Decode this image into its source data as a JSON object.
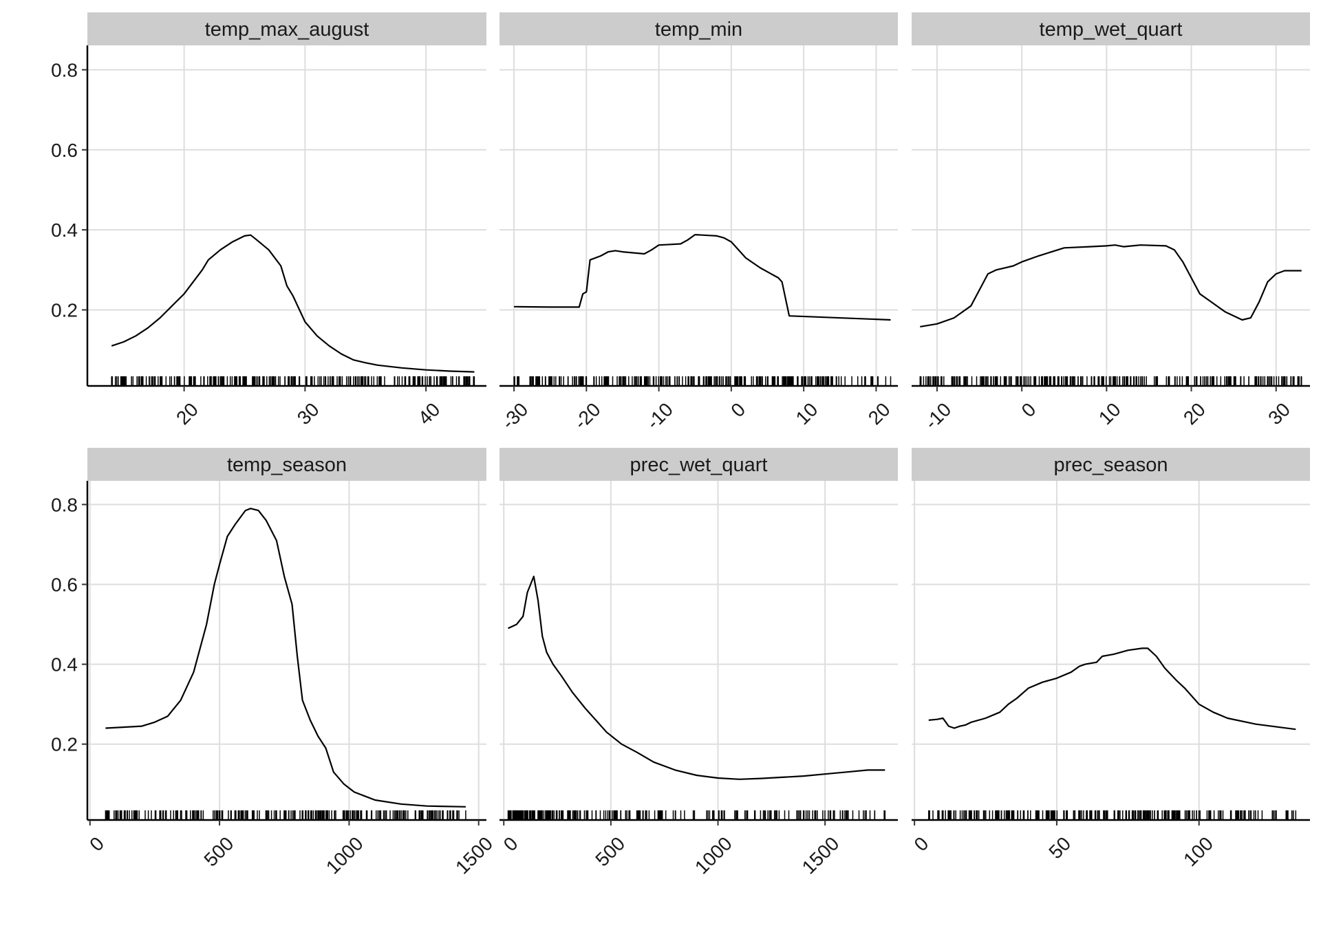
{
  "chart_data": {
    "type": "line",
    "layout": "facet-grid-2x3",
    "y_ticks": [
      0.2,
      0.4,
      0.6,
      0.8
    ],
    "ylim": [
      0.01,
      0.83
    ],
    "colors": {
      "line": "#000000",
      "strip": "#cccccc",
      "grid": "#dddddd"
    },
    "panels": [
      {
        "title": "temp_max_august",
        "xlim": [
          12,
          45
        ],
        "x_ticks": [
          20,
          30,
          40
        ],
        "rug_range": [
          14,
          44
        ],
        "series": [
          {
            "x": [
              14,
              15,
              16,
              17,
              18,
              19,
              20,
              21,
              21.5,
              22,
              23,
              24,
              25,
              25.5,
              26,
              27,
              28,
              28.5,
              29,
              30,
              31,
              32,
              33,
              34,
              35,
              36,
              38,
              40,
              42,
              44
            ],
            "y": [
              0.11,
              0.12,
              0.135,
              0.155,
              0.18,
              0.21,
              0.24,
              0.28,
              0.3,
              0.325,
              0.35,
              0.37,
              0.385,
              0.387,
              0.375,
              0.35,
              0.31,
              0.26,
              0.235,
              0.17,
              0.135,
              0.11,
              0.09,
              0.075,
              0.068,
              0.062,
              0.055,
              0.05,
              0.047,
              0.045
            ]
          }
        ]
      },
      {
        "title": "temp_min",
        "xlim": [
          -32,
          23
        ],
        "x_ticks": [
          -30,
          -20,
          -10,
          0,
          10,
          20
        ],
        "rug_range": [
          -30,
          22
        ],
        "series": [
          {
            "x": [
              -30,
              -25,
              -21,
              -20.5,
              -20,
              -19.5,
              -18,
              -17,
              -16,
              -15,
              -12,
              -11,
              -10,
              -9,
              -7,
              -6,
              -5,
              -3,
              -2,
              -1,
              0,
              1,
              2,
              4,
              5,
              6,
              6.5,
              7,
              8,
              22
            ],
            "y": [
              0.208,
              0.207,
              0.207,
              0.24,
              0.245,
              0.325,
              0.335,
              0.345,
              0.348,
              0.345,
              0.34,
              0.35,
              0.362,
              0.363,
              0.365,
              0.375,
              0.388,
              0.386,
              0.385,
              0.38,
              0.37,
              0.35,
              0.33,
              0.305,
              0.295,
              0.285,
              0.28,
              0.27,
              0.185,
              0.175
            ]
          }
        ]
      },
      {
        "title": "temp_wet_quart",
        "xlim": [
          -13,
          34
        ],
        "x_ticks": [
          -10,
          0,
          10,
          20,
          30
        ],
        "rug_range": [
          -12,
          33
        ],
        "series": [
          {
            "x": [
              -12,
              -10,
              -8,
              -6,
              -5,
              -4,
              -3,
              -2,
              -1,
              0,
              2,
              5,
              8,
              10,
              11,
              12,
              14,
              17,
              18,
              19,
              20,
              21,
              22,
              24,
              26,
              27,
              28,
              29,
              30,
              31,
              33
            ],
            "y": [
              0.158,
              0.165,
              0.18,
              0.21,
              0.25,
              0.29,
              0.3,
              0.305,
              0.31,
              0.32,
              0.335,
              0.355,
              0.358,
              0.36,
              0.362,
              0.358,
              0.362,
              0.36,
              0.35,
              0.32,
              0.28,
              0.24,
              0.225,
              0.195,
              0.175,
              0.18,
              0.22,
              0.27,
              0.29,
              0.298,
              0.298
            ]
          }
        ]
      },
      {
        "title": "temp_season",
        "xlim": [
          -10,
          1530
        ],
        "x_ticks": [
          0,
          500,
          1000,
          1500
        ],
        "rug_range": [
          60,
          1450
        ],
        "series": [
          {
            "x": [
              60,
              200,
              250,
              300,
              350,
              400,
              450,
              480,
              500,
              530,
              560,
              600,
              620,
              650,
              680,
              720,
              750,
              780,
              800,
              820,
              850,
              880,
              910,
              940,
              980,
              1020,
              1060,
              1100,
              1200,
              1300,
              1450
            ],
            "y": [
              0.24,
              0.245,
              0.255,
              0.27,
              0.31,
              0.38,
              0.5,
              0.6,
              0.65,
              0.72,
              0.75,
              0.785,
              0.79,
              0.785,
              0.76,
              0.71,
              0.62,
              0.55,
              0.42,
              0.31,
              0.26,
              0.22,
              0.19,
              0.13,
              0.1,
              0.08,
              0.07,
              0.06,
              0.05,
              0.045,
              0.043
            ]
          }
        ]
      },
      {
        "title": "prec_wet_quart",
        "xlim": [
          -20,
          1840
        ],
        "x_ticks": [
          0,
          500,
          1000,
          1500
        ],
        "rug_range": [
          20,
          1780
        ],
        "series": [
          {
            "x": [
              20,
              60,
              90,
              110,
              140,
              160,
              180,
              200,
              230,
              270,
              320,
              380,
              430,
              480,
              550,
              620,
              700,
              800,
              900,
              1000,
              1100,
              1200,
              1300,
              1400,
              1500,
              1600,
              1700,
              1780
            ],
            "y": [
              0.49,
              0.5,
              0.52,
              0.58,
              0.62,
              0.56,
              0.47,
              0.43,
              0.4,
              0.37,
              0.33,
              0.29,
              0.26,
              0.23,
              0.2,
              0.18,
              0.155,
              0.135,
              0.122,
              0.115,
              0.112,
              0.114,
              0.117,
              0.12,
              0.125,
              0.13,
              0.135,
              0.135
            ]
          }
        ]
      },
      {
        "title": "prec_season",
        "xlim": [
          -1,
          139
        ],
        "x_ticks": [
          0,
          50,
          100
        ],
        "rug_range": [
          5,
          134
        ],
        "series": [
          {
            "x": [
              5,
              8,
              10,
              12,
              14,
              16,
              18,
              20,
              25,
              30,
              33,
              36,
              40,
              45,
              50,
              55,
              58,
              60,
              64,
              66,
              70,
              75,
              80,
              82,
              85,
              88,
              92,
              95,
              100,
              105,
              110,
              120,
              134
            ],
            "y": [
              0.26,
              0.262,
              0.265,
              0.245,
              0.24,
              0.245,
              0.248,
              0.255,
              0.265,
              0.28,
              0.3,
              0.315,
              0.34,
              0.355,
              0.365,
              0.38,
              0.395,
              0.4,
              0.405,
              0.42,
              0.425,
              0.435,
              0.44,
              0.44,
              0.42,
              0.39,
              0.36,
              0.34,
              0.3,
              0.28,
              0.265,
              0.25,
              0.237
            ]
          }
        ]
      }
    ]
  }
}
